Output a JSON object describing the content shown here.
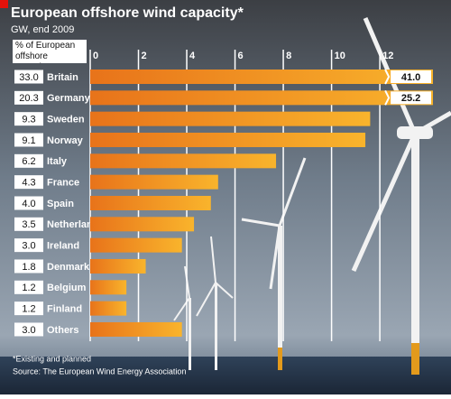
{
  "chart_data": {
    "type": "bar",
    "orientation": "horizontal",
    "title": "European offshore wind capacity*",
    "subtitle": "GW, end 2009",
    "share_header": "% of European offshore capacity*",
    "categories": [
      "Britain",
      "Germany",
      "Sweden",
      "Norway",
      "Italy",
      "France",
      "Spain",
      "Netherlands",
      "Ireland",
      "Denmark",
      "Belgium",
      "Finland",
      "Others"
    ],
    "shares": [
      "33.0",
      "20.3",
      "9.3",
      "9.1",
      "6.2",
      "4.3",
      "4.0",
      "3.5",
      "3.0",
      "1.8",
      "1.2",
      "1.2",
      "3.0"
    ],
    "values": [
      41.0,
      25.2,
      11.6,
      11.4,
      7.7,
      5.3,
      5.0,
      4.3,
      3.8,
      2.3,
      1.5,
      1.5,
      3.8
    ],
    "value_labels": [
      "41.0",
      "25.2",
      null,
      null,
      null,
      null,
      null,
      null,
      null,
      null,
      null,
      null,
      null
    ],
    "color": "#f39a25",
    "xlim": [
      0,
      14.5
    ],
    "xticks": [
      0,
      2,
      4,
      6,
      8,
      10,
      12
    ],
    "grid": true,
    "note": "*Existing and planned",
    "source": "Source: The European Wind Energy Association"
  }
}
